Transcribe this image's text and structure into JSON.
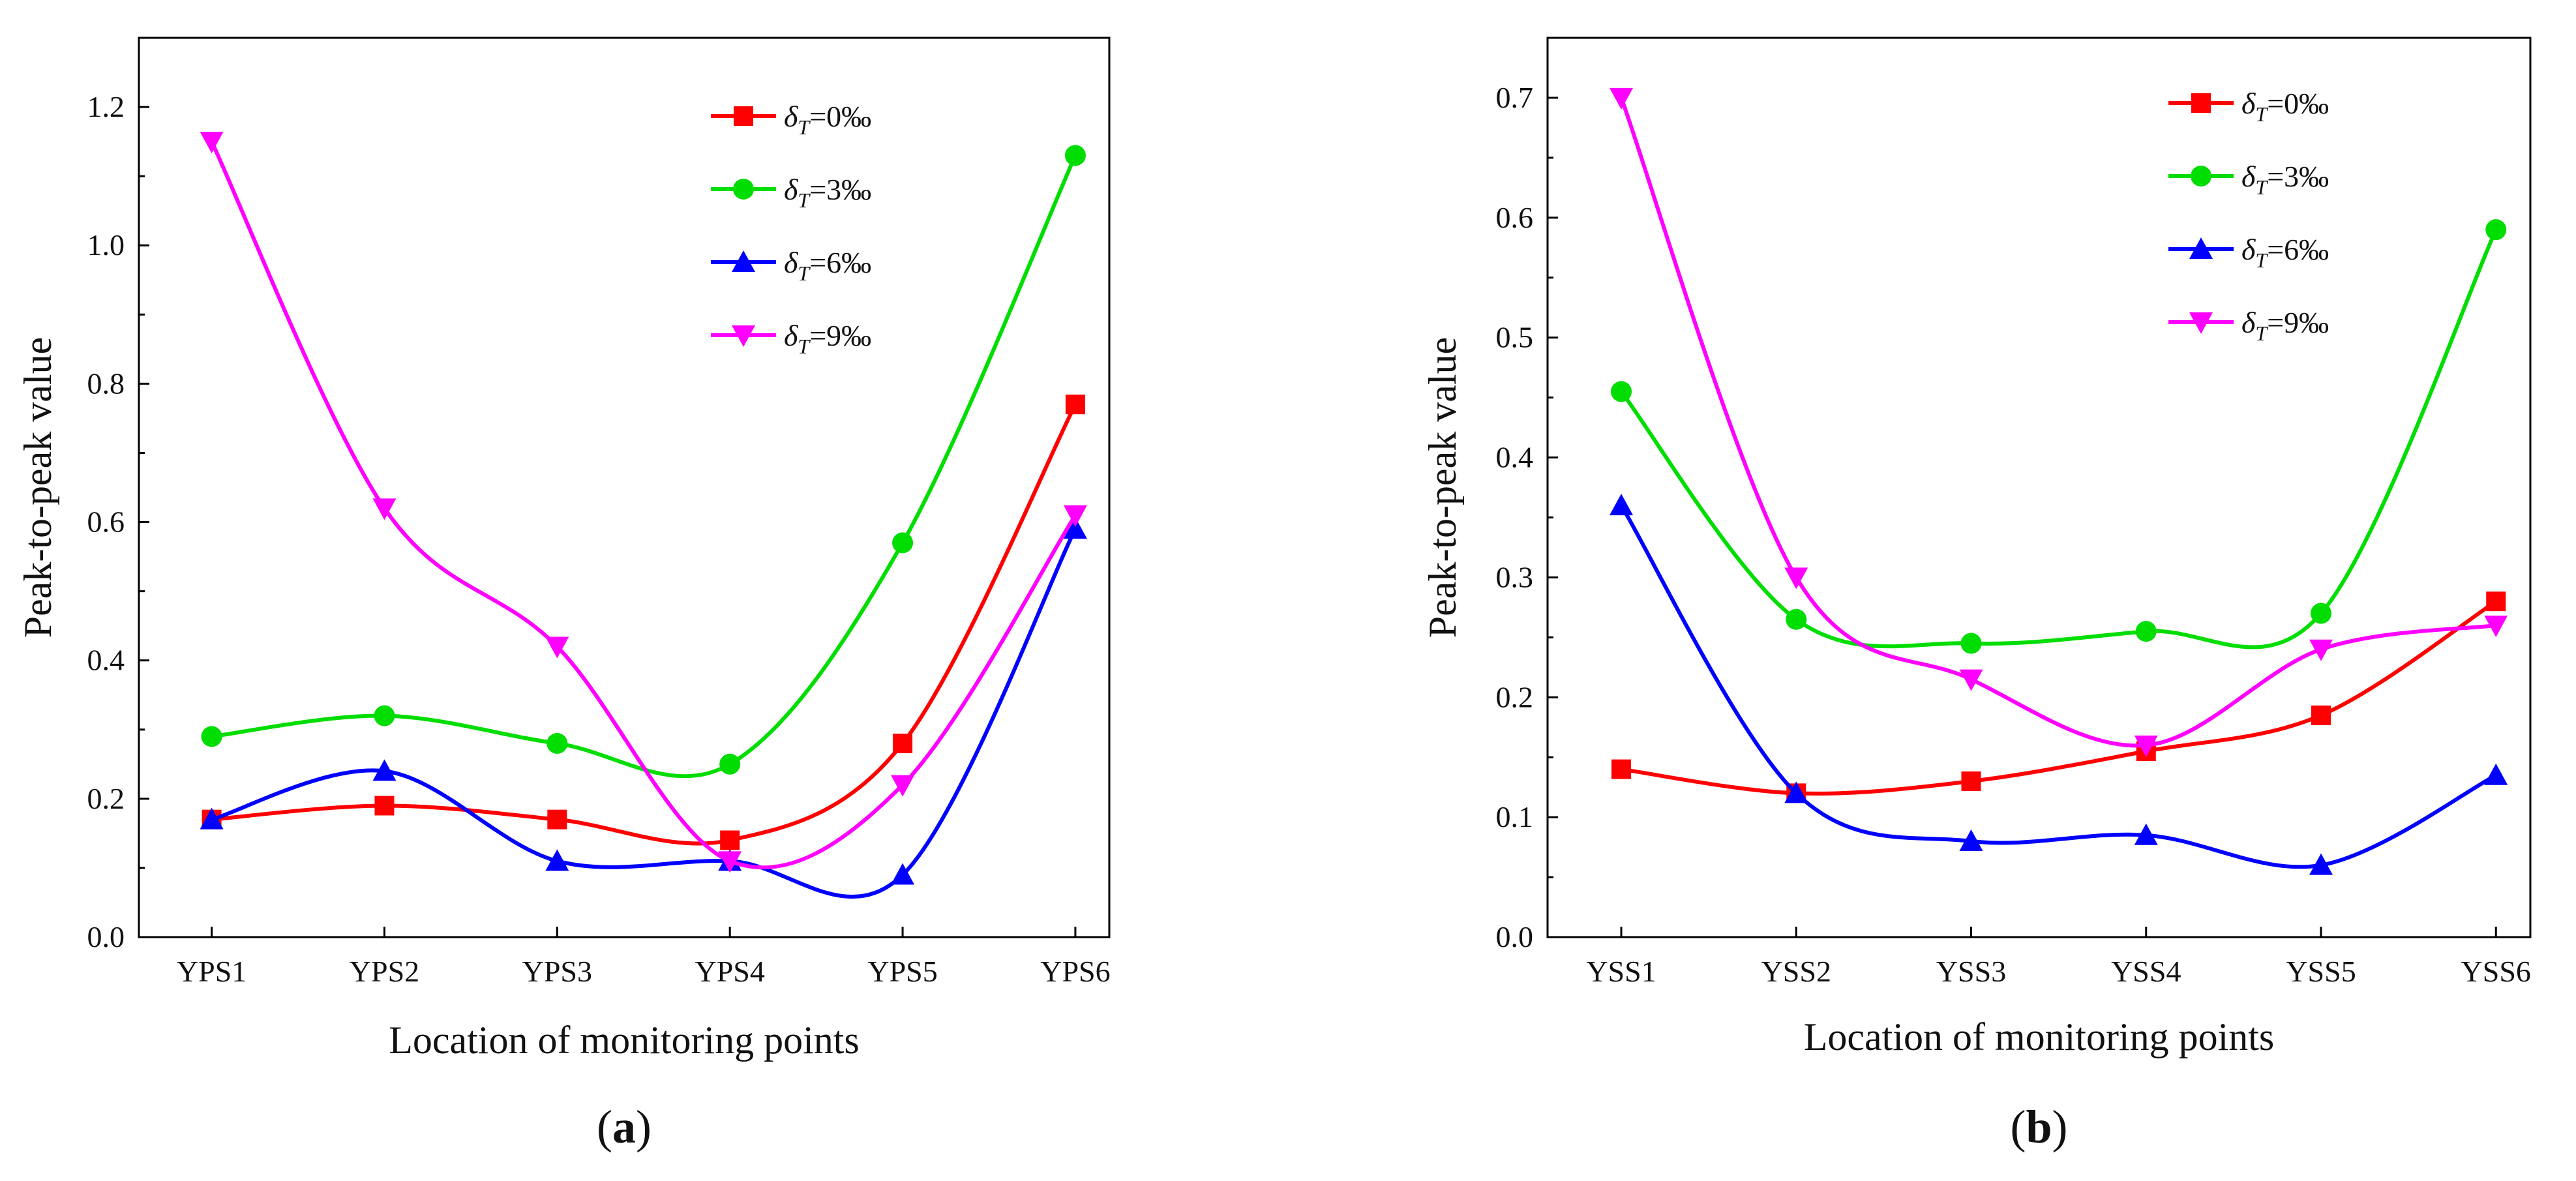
{
  "chart_data": [
    {
      "panel_label": "a",
      "type": "line",
      "categories": [
        "YPS1",
        "YPS2",
        "YPS3",
        "YPS4",
        "YPS5",
        "YPS6"
      ],
      "xlabel": "Location of monitoring points",
      "ylabel": "Peak-to-peak value",
      "ylim": [
        0,
        1.3
      ],
      "yticks": [
        "0.0",
        "0.2",
        "0.4",
        "0.6",
        "0.8",
        "1.0",
        "1.2"
      ],
      "legend_position": "top-right",
      "series": [
        {
          "name": "δ_T=0‰",
          "sym": "δ",
          "sub": "T",
          "val": "=0‰",
          "color": "#ff0000",
          "marker": "square",
          "values": [
            0.17,
            0.19,
            0.17,
            0.14,
            0.28,
            0.77
          ]
        },
        {
          "name": "δ_T=3‰",
          "sym": "δ",
          "sub": "T",
          "val": "=3‰",
          "color": "#00dd00",
          "marker": "circle",
          "values": [
            0.29,
            0.32,
            0.28,
            0.25,
            0.57,
            1.13
          ]
        },
        {
          "name": "δ_T=6‰",
          "sym": "δ",
          "sub": "T",
          "val": "=6‰",
          "color": "#0000ff",
          "marker": "triangle-up",
          "values": [
            0.17,
            0.24,
            0.11,
            0.11,
            0.09,
            0.59
          ]
        },
        {
          "name": "δ_T=9‰",
          "sym": "δ",
          "sub": "T",
          "val": "=9‰",
          "color": "#ff00ff",
          "marker": "triangle-down",
          "values": [
            1.15,
            0.62,
            0.42,
            0.11,
            0.22,
            0.61
          ]
        }
      ]
    },
    {
      "panel_label": "b",
      "type": "line",
      "categories": [
        "YSS1",
        "YSS2",
        "YSS3",
        "YSS4",
        "YSS5",
        "YSS6"
      ],
      "xlabel": "Location of monitoring points",
      "ylabel": "Peak-to-peak value",
      "ylim": [
        0,
        0.75
      ],
      "yticks": [
        "0.0",
        "0.1",
        "0.2",
        "0.3",
        "0.4",
        "0.5",
        "0.6",
        "0.7"
      ],
      "legend_position": "top-right",
      "series": [
        {
          "name": "δ_T=0‰",
          "sym": "δ",
          "sub": "T",
          "val": "=0‰",
          "color": "#ff0000",
          "marker": "square",
          "values": [
            0.14,
            0.12,
            0.13,
            0.155,
            0.185,
            0.28
          ]
        },
        {
          "name": "δ_T=3‰",
          "sym": "δ",
          "sub": "T",
          "val": "=3‰",
          "color": "#00dd00",
          "marker": "circle",
          "values": [
            0.455,
            0.265,
            0.245,
            0.255,
            0.27,
            0.59
          ]
        },
        {
          "name": "δ_T=6‰",
          "sym": "δ",
          "sub": "T",
          "val": "=6‰",
          "color": "#0000ff",
          "marker": "triangle-up",
          "values": [
            0.36,
            0.12,
            0.08,
            0.085,
            0.06,
            0.135
          ]
        },
        {
          "name": "δ_T=9‰",
          "sym": "δ",
          "sub": "T",
          "val": "=9‰",
          "color": "#ff00ff",
          "marker": "triangle-down",
          "values": [
            0.7,
            0.3,
            0.215,
            0.16,
            0.24,
            0.26
          ]
        }
      ]
    }
  ]
}
